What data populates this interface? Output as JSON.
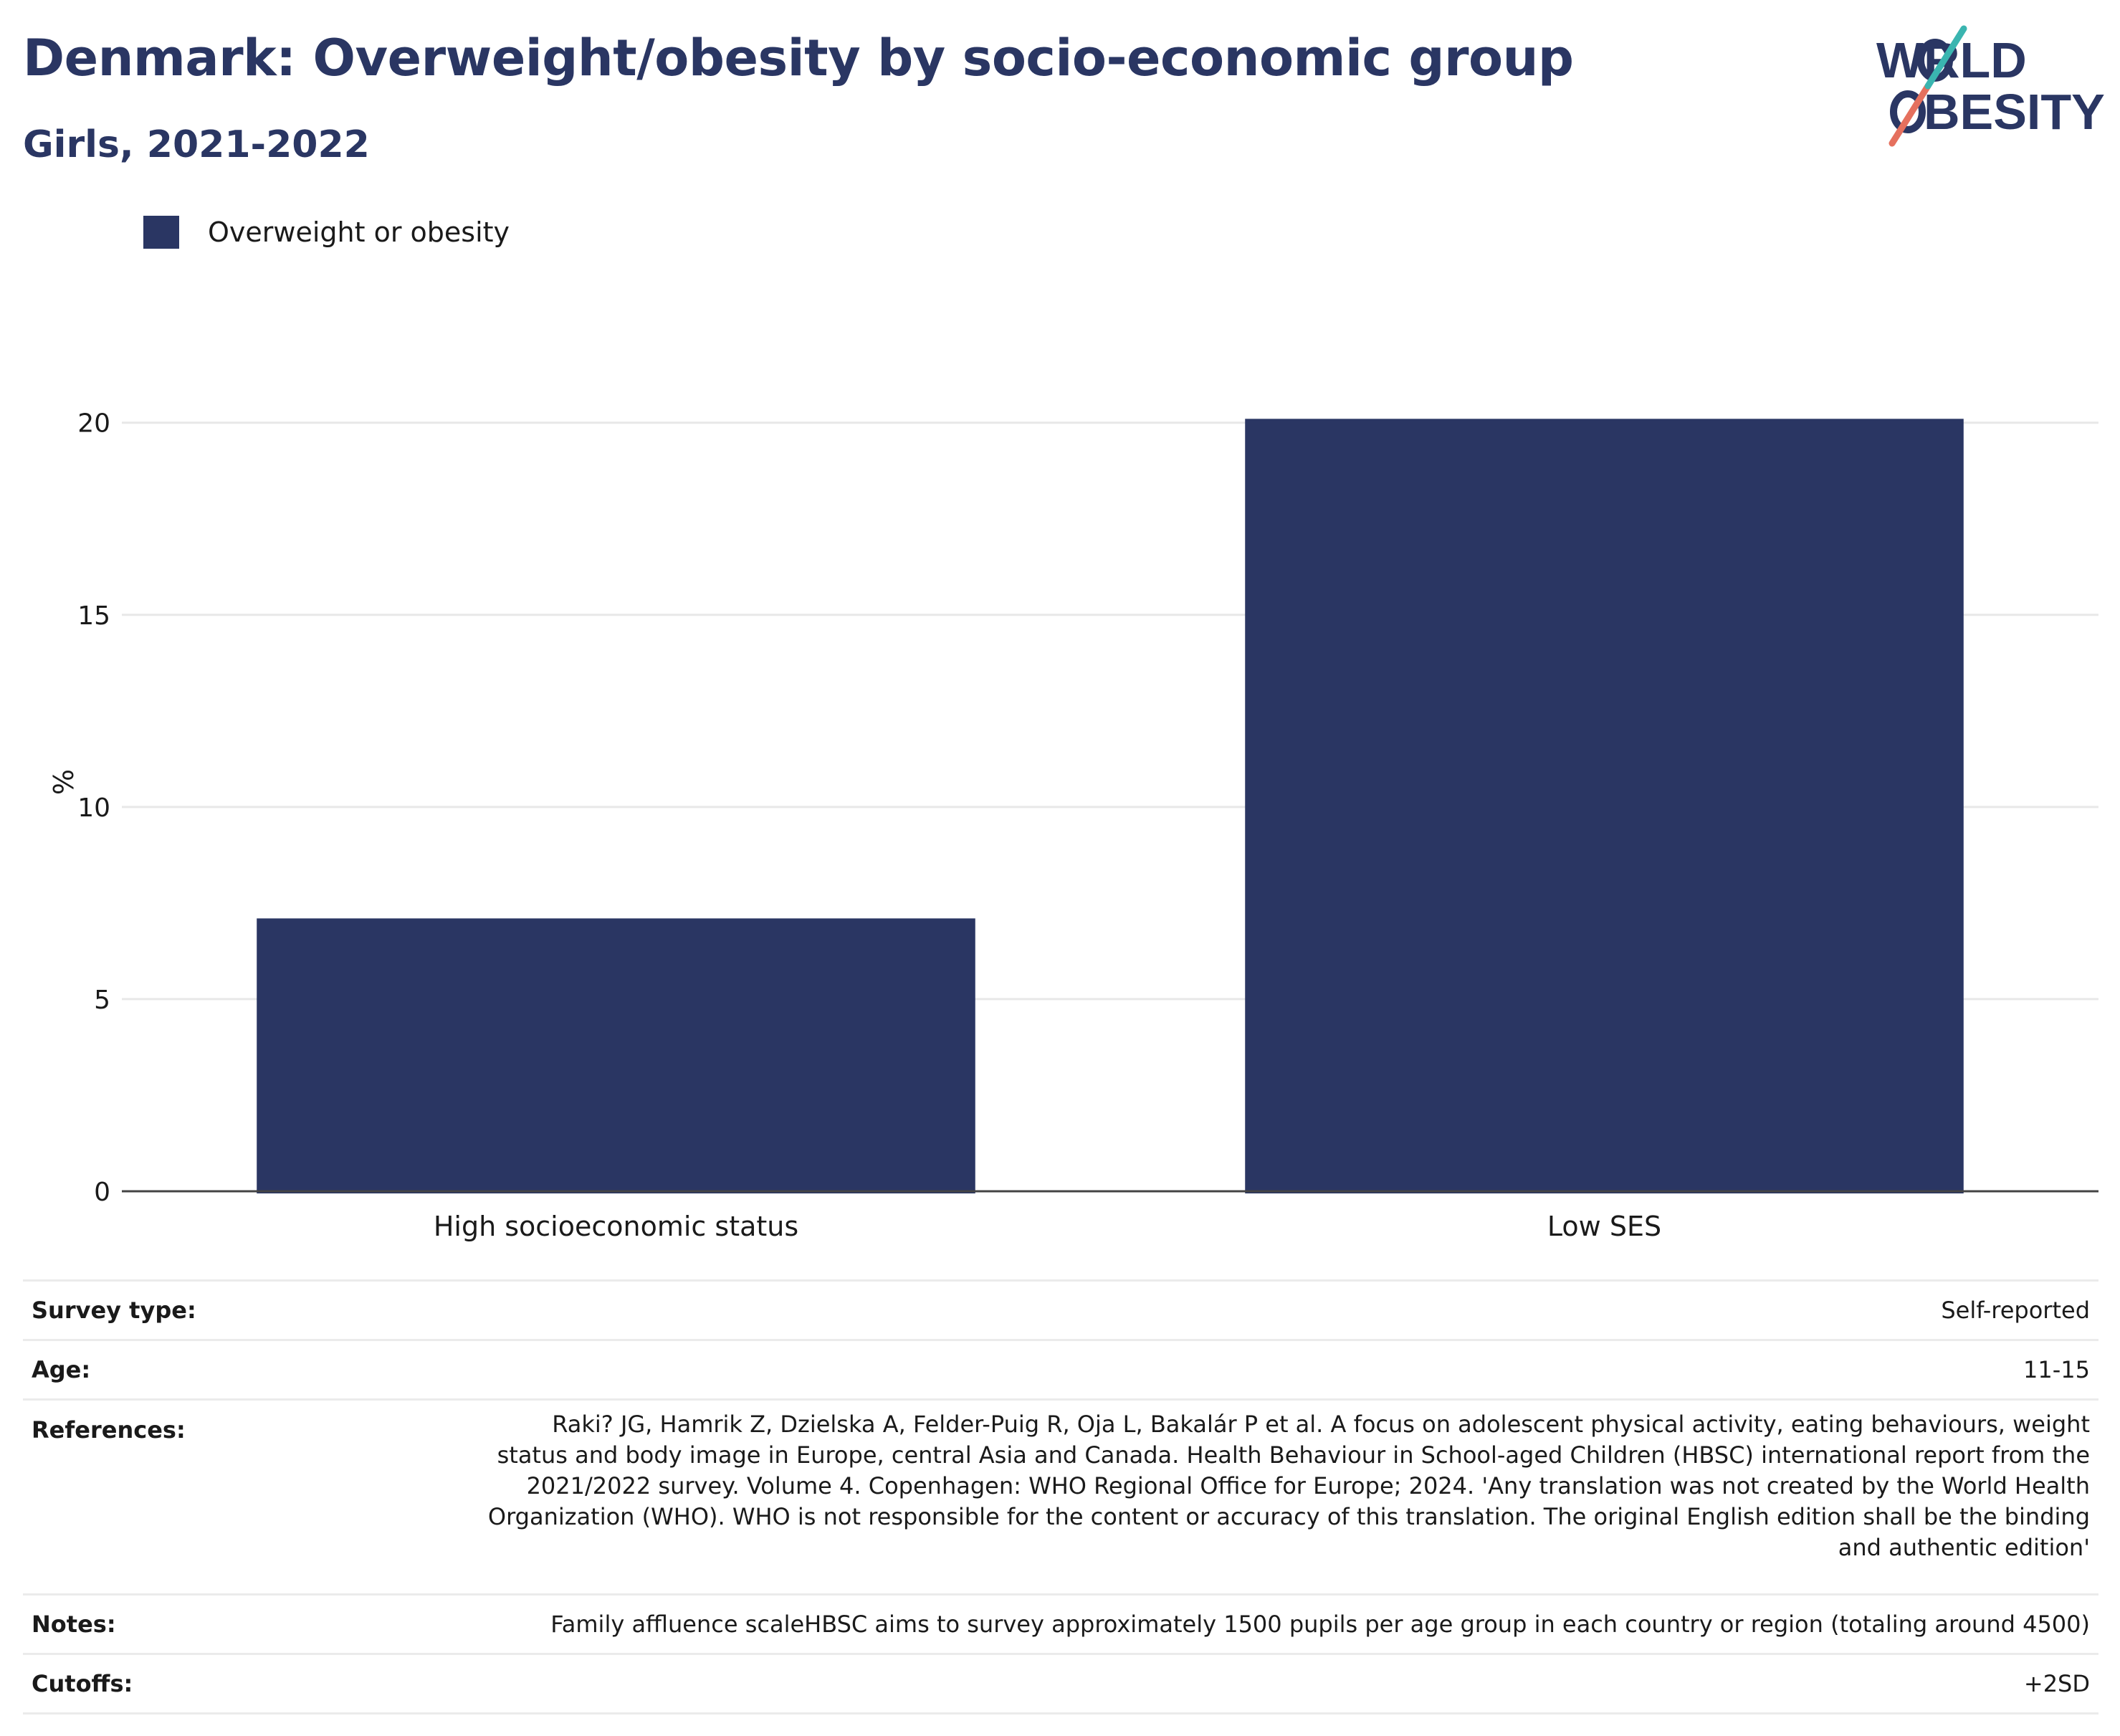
{
  "title": "Denmark: Overweight/obesity by socio-economic group",
  "subtitle": "Girls, 2021-2022",
  "logo": {
    "line1": "WORLD",
    "line2": "OBESITY",
    "colors": [
      "#2a3663",
      "#e5705e",
      "#3ab5b0"
    ]
  },
  "colors": {
    "bar": "#2a3663",
    "title": "#2a3663",
    "grid": "#e8e8e8"
  },
  "chart_data": {
    "type": "bar",
    "categories": [
      "High socioeconomic status",
      "Low SES"
    ],
    "series": [
      {
        "name": "Overweight or obesity",
        "values": [
          7.1,
          20.1
        ]
      }
    ],
    "ylabel": "%",
    "xlabel": "",
    "ylim": [
      0,
      21.3
    ],
    "yticks": [
      0,
      5,
      10,
      15,
      20
    ],
    "grid": true,
    "legend": "top-left"
  },
  "info": {
    "survey_type": {
      "label": "Survey type:",
      "value": "Self-reported"
    },
    "age": {
      "label": "Age:",
      "value": "11-15"
    },
    "references": {
      "label": "References:",
      "value": "Raki? JG, Hamrik Z, Dzielska A, Felder-Puig R, Oja L, Bakalár P et al. A focus on adolescent physical activity, eating behaviours, weight status and body image in Europe, central Asia and Canada. Health Behaviour in School-aged Children (HBSC) international report from the 2021/2022 survey. Volume 4. Copenhagen: WHO Regional Office for Europe; 2024. 'Any translation was not created by the World Health Organization (WHO). WHO is not responsible for the content or accuracy of this translation. The original English edition shall be the binding and authentic edition'"
    },
    "notes": {
      "label": "Notes:",
      "value": "Family affluence scaleHBSC aims to survey approximately 1500 pupils per age group in each country or region (totaling around 4500)"
    },
    "cutoffs": {
      "label": "Cutoffs:",
      "value": "+2SD"
    }
  }
}
